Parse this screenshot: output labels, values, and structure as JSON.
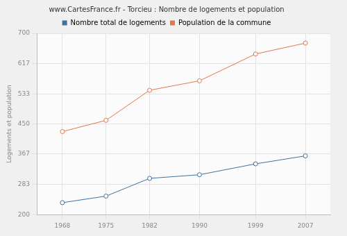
{
  "chart_data": {
    "type": "line",
    "title": "www.CartesFrance.fr - Torcieu : Nombre de logements et population",
    "y_label": "Logements et population",
    "x": [
      1968,
      1975,
      1982,
      1990,
      1999,
      2007
    ],
    "series": [
      {
        "name": "Nombre total de logements",
        "color": "#41709e",
        "values": [
          233,
          251,
          300,
          310,
          340,
          362
        ]
      },
      {
        "name": "Population de la commune",
        "color": "#e0784a",
        "values": [
          429,
          460,
          543,
          569,
          643,
          673
        ]
      }
    ],
    "xlim": [
      1964,
      2011
    ],
    "xticks": [
      1968,
      1975,
      1982,
      1990,
      1999,
      2007
    ],
    "ylim": [
      200,
      700
    ],
    "yticks": [
      200,
      283,
      367,
      450,
      533,
      617,
      700
    ],
    "grid": true,
    "legend": "top",
    "marker": "circle"
  }
}
